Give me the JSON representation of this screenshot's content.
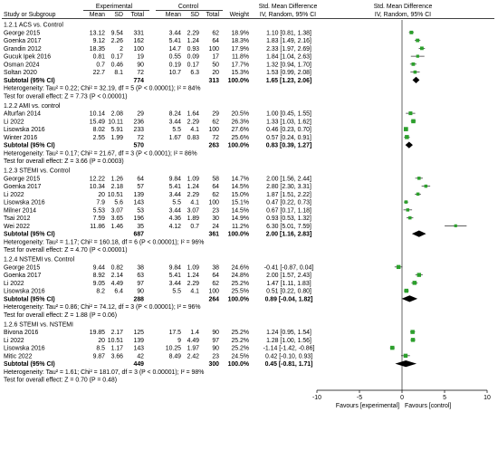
{
  "chart_data": {
    "type": "forest",
    "header": {
      "group_experimental": "Experimental",
      "group_control": "Control",
      "effect_title": "Std. Mean Difference",
      "effect_method": "IV, Random, 95% CI",
      "columns": {
        "study": "Study or Subgroup",
        "mean": "Mean",
        "sd": "SD",
        "total": "Total",
        "weight": "Weight"
      }
    },
    "subgroups": [
      {
        "title": "1.2.1 ACS vs. Control",
        "studies": [
          {
            "study": "George 2015",
            "e_mean": "13.12",
            "e_sd": "9.54",
            "e_n": "331",
            "c_mean": "3.44",
            "c_sd": "2.29",
            "c_n": "62",
            "weight": "18.9%",
            "ci_text": "1.10 [0.81, 1.38]",
            "est": 1.1,
            "lo": 0.81,
            "hi": 1.38
          },
          {
            "study": "Goenka 2017",
            "e_mean": "9.12",
            "e_sd": "2.26",
            "e_n": "162",
            "c_mean": "5.41",
            "c_sd": "1.24",
            "c_n": "64",
            "weight": "18.3%",
            "ci_text": "1.83 [1.49, 2.16]",
            "est": 1.83,
            "lo": 1.49,
            "hi": 2.16
          },
          {
            "study": "Grandin 2012",
            "e_mean": "18.35",
            "e_sd": "2",
            "e_n": "100",
            "c_mean": "14.7",
            "c_sd": "0.93",
            "c_n": "100",
            "weight": "17.9%",
            "ci_text": "2.33 [1.97, 2.69]",
            "est": 2.33,
            "lo": 1.97,
            "hi": 2.69
          },
          {
            "study": "Gucuk Ipek 2016",
            "e_mean": "0.81",
            "e_sd": "0.17",
            "e_n": "19",
            "c_mean": "0.55",
            "c_sd": "0.09",
            "c_n": "17",
            "weight": "11.8%",
            "ci_text": "1.84 [1.04, 2.63]",
            "est": 1.84,
            "lo": 1.04,
            "hi": 2.63
          },
          {
            "study": "Osman 2024",
            "e_mean": "0.7",
            "e_sd": "0.46",
            "e_n": "90",
            "c_mean": "0.19",
            "c_sd": "0.17",
            "c_n": "50",
            "weight": "17.7%",
            "ci_text": "1.32 [0.94, 1.70]",
            "est": 1.32,
            "lo": 0.94,
            "hi": 1.7
          },
          {
            "study": "Soltan 2020",
            "e_mean": "22.7",
            "e_sd": "8.1",
            "e_n": "72",
            "c_mean": "10.7",
            "c_sd": "6.3",
            "c_n": "20",
            "weight": "15.3%",
            "ci_text": "1.53 [0.99, 2.08]",
            "est": 1.53,
            "lo": 0.99,
            "hi": 2.08
          }
        ],
        "subtotal": {
          "label": "Subtotal (95% CI)",
          "e_n": "774",
          "c_n": "313",
          "weight": "100.0%",
          "ci_text": "1.65 [1.23, 2.06]",
          "est": 1.65,
          "lo": 1.23,
          "hi": 2.06
        },
        "heterogeneity": "Heterogeneity: Tau² = 0.22; Chi² = 32.19, df = 5 (P < 0.00001); I² = 84%",
        "overall": "Test for overall effect: Z = 7.73 (P < 0.00001)"
      },
      {
        "title": "1.2.2 AMI vs. control",
        "studies": [
          {
            "study": "Alturfan 2014",
            "e_mean": "10.14",
            "e_sd": "2.08",
            "e_n": "29",
            "c_mean": "8.24",
            "c_sd": "1.64",
            "c_n": "29",
            "weight": "20.5%",
            "ci_text": "1.00 [0.45, 1.55]",
            "est": 1.0,
            "lo": 0.45,
            "hi": 1.55
          },
          {
            "study": "Li 2022",
            "e_mean": "15.49",
            "e_sd": "10.11",
            "e_n": "236",
            "c_mean": "3.44",
            "c_sd": "2.29",
            "c_n": "62",
            "weight": "26.3%",
            "ci_text": "1.33 [1.03, 1.62]",
            "est": 1.33,
            "lo": 1.03,
            "hi": 1.62
          },
          {
            "study": "Lisowska 2016",
            "e_mean": "8.02",
            "e_sd": "5.91",
            "e_n": "233",
            "c_mean": "5.5",
            "c_sd": "4.1",
            "c_n": "100",
            "weight": "27.6%",
            "ci_text": "0.46 [0.23, 0.70]",
            "est": 0.46,
            "lo": 0.23,
            "hi": 0.7
          },
          {
            "study": "Winter 2016",
            "e_mean": "2.55",
            "e_sd": "1.99",
            "e_n": "72",
            "c_mean": "1.67",
            "c_sd": "0.83",
            "c_n": "72",
            "weight": "25.6%",
            "ci_text": "0.57 [0.24, 0.91]",
            "est": 0.57,
            "lo": 0.24,
            "hi": 0.91
          }
        ],
        "subtotal": {
          "label": "Subtotal (95% CI)",
          "e_n": "570",
          "c_n": "263",
          "weight": "100.0%",
          "ci_text": "0.83 [0.39, 1.27]",
          "est": 0.83,
          "lo": 0.39,
          "hi": 1.27
        },
        "heterogeneity": "Heterogeneity: Tau² = 0.17; Chi² = 21.67, df = 3 (P < 0.0001); I² = 86%",
        "overall": "Test for overall effect: Z = 3.66 (P = 0.0003)"
      },
      {
        "title": "1.2.3 STEMI vs. Control",
        "studies": [
          {
            "study": "George 2015",
            "e_mean": "12.22",
            "e_sd": "1.26",
            "e_n": "64",
            "c_mean": "9.84",
            "c_sd": "1.09",
            "c_n": "58",
            "weight": "14.7%",
            "ci_text": "2.00 [1.56, 2.44]",
            "est": 2.0,
            "lo": 1.56,
            "hi": 2.44
          },
          {
            "study": "Goenka 2017",
            "e_mean": "10.34",
            "e_sd": "2.18",
            "e_n": "57",
            "c_mean": "5.41",
            "c_sd": "1.24",
            "c_n": "64",
            "weight": "14.5%",
            "ci_text": "2.80 [2.30, 3.31]",
            "est": 2.8,
            "lo": 2.3,
            "hi": 3.31
          },
          {
            "study": "Li 2022",
            "e_mean": "20",
            "e_sd": "10.51",
            "e_n": "139",
            "c_mean": "3.44",
            "c_sd": "2.29",
            "c_n": "62",
            "weight": "15.0%",
            "ci_text": "1.87 [1.51, 2.22]",
            "est": 1.87,
            "lo": 1.51,
            "hi": 2.22
          },
          {
            "study": "Lisowska 2016",
            "e_mean": "7.9",
            "e_sd": "5.6",
            "e_n": "143",
            "c_mean": "5.5",
            "c_sd": "4.1",
            "c_n": "100",
            "weight": "15.1%",
            "ci_text": "0.47 [0.22, 0.73]",
            "est": 0.47,
            "lo": 0.22,
            "hi": 0.73
          },
          {
            "study": "Milner 2014",
            "e_mean": "5.53",
            "e_sd": "3.07",
            "e_n": "53",
            "c_mean": "3.44",
            "c_sd": "3.07",
            "c_n": "23",
            "weight": "14.5%",
            "ci_text": "0.67 [0.17, 1.18]",
            "est": 0.67,
            "lo": 0.17,
            "hi": 1.18
          },
          {
            "study": "Tsai 2012",
            "e_mean": "7.59",
            "e_sd": "3.65",
            "e_n": "196",
            "c_mean": "4.36",
            "c_sd": "1.89",
            "c_n": "30",
            "weight": "14.9%",
            "ci_text": "0.93 [0.53, 1.32]",
            "est": 0.93,
            "lo": 0.53,
            "hi": 1.32
          },
          {
            "study": "Wei 2022",
            "e_mean": "11.86",
            "e_sd": "1.46",
            "e_n": "35",
            "c_mean": "4.12",
            "c_sd": "0.7",
            "c_n": "24",
            "weight": "11.2%",
            "ci_text": "6.30 [5.01, 7.59]",
            "est": 6.3,
            "lo": 5.01,
            "hi": 7.59
          }
        ],
        "subtotal": {
          "label": "Subtotal (95% CI)",
          "e_n": "687",
          "c_n": "361",
          "weight": "100.0%",
          "ci_text": "2.00 [1.16, 2.83]",
          "est": 2.0,
          "lo": 1.16,
          "hi": 2.83
        },
        "heterogeneity": "Heterogeneity: Tau² = 1.17; Chi² = 160.18, df = 6 (P < 0.00001); I² = 96%",
        "overall": "Test for overall effect: Z = 4.70 (P < 0.00001)"
      },
      {
        "title": "1.2.4 NSTEMI vs. Control",
        "studies": [
          {
            "study": "George 2015",
            "e_mean": "9.44",
            "e_sd": "0.82",
            "e_n": "38",
            "c_mean": "9.84",
            "c_sd": "1.09",
            "c_n": "38",
            "weight": "24.6%",
            "ci_text": "-0.41 [-0.87, 0.04]",
            "est": -0.41,
            "lo": -0.87,
            "hi": 0.04
          },
          {
            "study": "Goenka 2017",
            "e_mean": "8.92",
            "e_sd": "2.14",
            "e_n": "63",
            "c_mean": "5.41",
            "c_sd": "1.24",
            "c_n": "64",
            "weight": "24.8%",
            "ci_text": "2.00 [1.57, 2.43]",
            "est": 2.0,
            "lo": 1.57,
            "hi": 2.43
          },
          {
            "study": "Li 2022",
            "e_mean": "9.05",
            "e_sd": "4.49",
            "e_n": "97",
            "c_mean": "3.44",
            "c_sd": "2.29",
            "c_n": "62",
            "weight": "25.2%",
            "ci_text": "1.47 [1.11, 1.83]",
            "est": 1.47,
            "lo": 1.11,
            "hi": 1.83
          },
          {
            "study": "Lisowska 2016",
            "e_mean": "8.2",
            "e_sd": "6.4",
            "e_n": "90",
            "c_mean": "5.5",
            "c_sd": "4.1",
            "c_n": "100",
            "weight": "25.5%",
            "ci_text": "0.51 [0.22, 0.80]",
            "est": 0.51,
            "lo": 0.22,
            "hi": 0.8
          }
        ],
        "subtotal": {
          "label": "Subtotal (95% CI)",
          "e_n": "288",
          "c_n": "264",
          "weight": "100.0%",
          "ci_text": "0.89 [-0.04, 1.82]",
          "est": 0.89,
          "lo": -0.04,
          "hi": 1.82
        },
        "heterogeneity": "Heterogeneity: Tau² = 0.86; Chi² = 74.12, df = 3 (P < 0.00001); I² = 96%",
        "overall": "Test for overall effect: Z = 1.88 (P = 0.06)"
      },
      {
        "title": "1.2.6 STEMI vs. NSTEMI",
        "studies": [
          {
            "study": "Bivona 2016",
            "e_mean": "19.85",
            "e_sd": "2.17",
            "e_n": "125",
            "c_mean": "17.5",
            "c_sd": "1.4",
            "c_n": "90",
            "weight": "25.2%",
            "ci_text": "1.24 [0.95, 1.54]",
            "est": 1.24,
            "lo": 0.95,
            "hi": 1.54
          },
          {
            "study": "Li 2022",
            "e_mean": "20",
            "e_sd": "10.51",
            "e_n": "139",
            "c_mean": "9",
            "c_sd": "4.49",
            "c_n": "97",
            "weight": "25.2%",
            "ci_text": "1.28 [1.00, 1.56]",
            "est": 1.28,
            "lo": 1.0,
            "hi": 1.56
          },
          {
            "study": "Lisowska 2016",
            "e_mean": "8.5",
            "e_sd": "1.17",
            "e_n": "143",
            "c_mean": "10.25",
            "c_sd": "1.97",
            "c_n": "90",
            "weight": "25.2%",
            "ci_text": "-1.14 [-1.42, -0.86]",
            "est": -1.14,
            "lo": -1.42,
            "hi": -0.86
          },
          {
            "study": "Mitic 2022",
            "e_mean": "9.87",
            "e_sd": "3.66",
            "e_n": "42",
            "c_mean": "8.49",
            "c_sd": "2.42",
            "c_n": "23",
            "weight": "24.5%",
            "ci_text": "0.42 [-0.10, 0.93]",
            "est": 0.42,
            "lo": -0.1,
            "hi": 0.93
          }
        ],
        "subtotal": {
          "label": "Subtotal (95% CI)",
          "e_n": "449",
          "c_n": "300",
          "weight": "100.0%",
          "ci_text": "0.45 [-0.81, 1.71]",
          "est": 0.45,
          "lo": -0.81,
          "hi": 1.71
        },
        "heterogeneity": "Heterogeneity: Tau² = 1.61; Chi² = 181.07, df = 3 (P < 0.00001); I² = 98%",
        "overall": "Test for overall effect: Z = 0.70 (P = 0.48)"
      }
    ],
    "axis": {
      "range": [
        -10,
        10
      ],
      "ticks": [
        "-10",
        "-5",
        "0",
        "5",
        "10"
      ],
      "tick_values": [
        -10,
        -5,
        0,
        5,
        10
      ],
      "label_left": "Favours [experimental]",
      "label_right": "Favours [control]"
    },
    "colors": {
      "study_marker": "#2ca02c",
      "diamond": "#000000"
    }
  }
}
